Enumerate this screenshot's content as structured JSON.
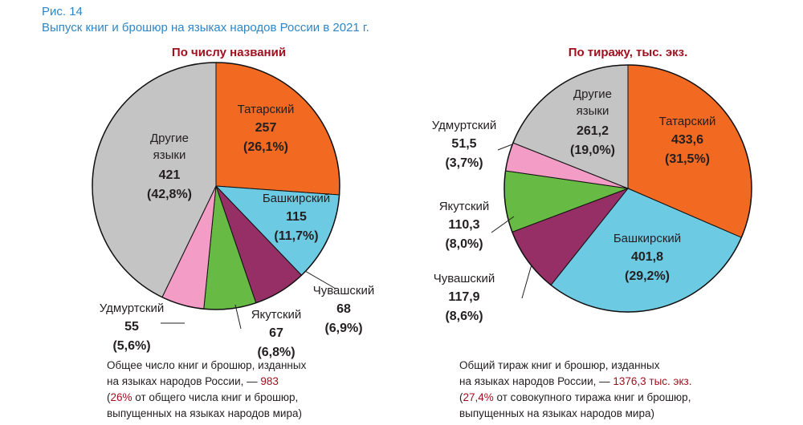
{
  "figure": {
    "label": "Рис. 14",
    "title": "Выпуск книг и брошюр на языках народов России в 2021 г."
  },
  "colors": {
    "tatar": "#f26a21",
    "bashkir": "#6ccbe3",
    "chuvash": "#962f65",
    "yakut": "#67ba44",
    "udmurt": "#f39cc6",
    "other": "#c4c4c4",
    "accent": "#a0101e",
    "title": "#2e86c6"
  },
  "chart_data": [
    {
      "type": "pie",
      "title": "По числу названий",
      "slices": [
        {
          "name": "Татарский",
          "value": 257,
          "value_label": "257",
          "pct_label": "(26,1%)",
          "color": "#f26a21"
        },
        {
          "name": "Башкирский",
          "value": 115,
          "value_label": "115",
          "pct_label": "(11,7%)",
          "color": "#6ccbe3"
        },
        {
          "name": "Чувашский",
          "value": 68,
          "value_label": "68",
          "pct_label": "(6,9%)",
          "color": "#962f65"
        },
        {
          "name": "Якутский",
          "value": 67,
          "value_label": "67",
          "pct_label": "(6,8%)",
          "color": "#67ba44"
        },
        {
          "name": "Удмуртский",
          "value": 55,
          "value_label": "55",
          "pct_label": "(5,6%)",
          "color": "#f39cc6"
        },
        {
          "name": "Другие языки",
          "name_lines": [
            "Другие",
            "языки"
          ],
          "value": 421,
          "value_label": "421",
          "pct_label": "(42,8%)",
          "color": "#c4c4c4"
        }
      ]
    },
    {
      "type": "pie",
      "title": "По тиражу, тыс. экз.",
      "slices": [
        {
          "name": "Татарский",
          "value": 433.6,
          "value_label": "433,6",
          "pct_label": "(31,5%)",
          "color": "#f26a21"
        },
        {
          "name": "Башкирский",
          "value": 401.8,
          "value_label": "401,8",
          "pct_label": "(29,2%)",
          "color": "#6ccbe3"
        },
        {
          "name": "Чувашский",
          "value": 117.9,
          "value_label": "117,9",
          "pct_label": "(8,6%)",
          "color": "#962f65"
        },
        {
          "name": "Якутский",
          "value": 110.3,
          "value_label": "110,3",
          "pct_label": "(8,0%)",
          "color": "#67ba44"
        },
        {
          "name": "Удмуртский",
          "value": 51.5,
          "value_label": "51,5",
          "pct_label": "(3,7%)",
          "color": "#f39cc6"
        },
        {
          "name": "Другие языки",
          "name_lines": [
            "Другие",
            "языки"
          ],
          "value": 261.2,
          "value_label": "261,2",
          "pct_label": "(19,0%)",
          "color": "#c4c4c4"
        }
      ]
    }
  ],
  "notes": {
    "left": {
      "line1": "Общее число книг и брошюр, изданных",
      "line2_pre": "на языках народов России, — ",
      "line2_hl": "983",
      "line3_pre": "(",
      "line3_hl": "26%",
      "line3_post": " от общего числа книг и брошюр,",
      "line4": "выпущенных на языках народов мира)"
    },
    "right": {
      "line1": "Общий тираж книг и брошюр, изданных",
      "line2_pre": "на языках народов России, — ",
      "line2_hl": "1376,3 тыс. экз.",
      "line3_pre": "(",
      "line3_hl": "27,4%",
      "line3_post": " от совокупного тиража книг и брошюр,",
      "line4": "выпущенных на языках народов мира)"
    }
  }
}
